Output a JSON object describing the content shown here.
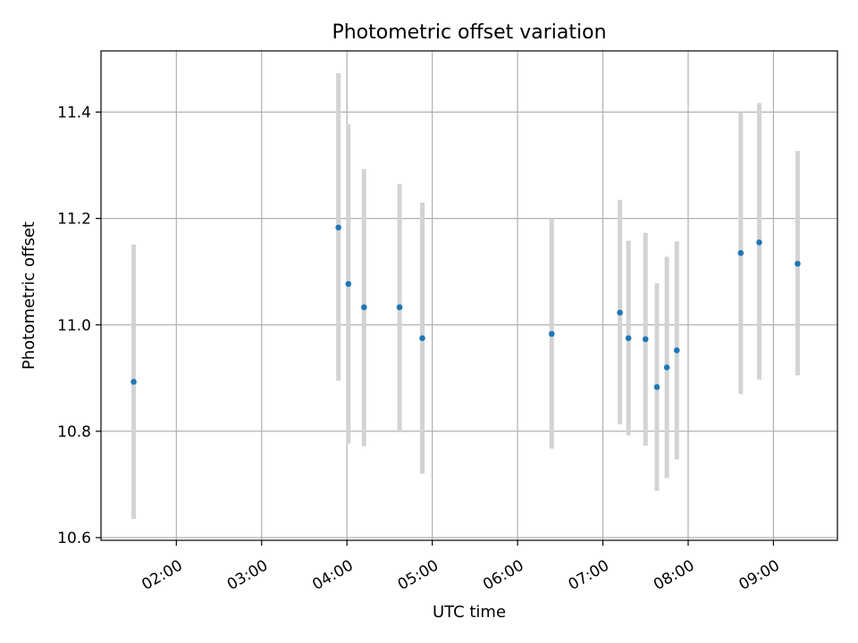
{
  "chart_data": {
    "type": "scatter",
    "title": "Photometric offset variation",
    "xlabel": "UTC time",
    "ylabel": "Photometric offset",
    "x_axis": {
      "type": "time",
      "range": [
        "01:07",
        "09:45"
      ],
      "ticks": [
        "02:00",
        "03:00",
        "04:00",
        "05:00",
        "06:00",
        "07:00",
        "08:00",
        "09:00"
      ]
    },
    "y_axis": {
      "range": [
        10.595,
        11.515
      ],
      "ticks": [
        10.6,
        10.8,
        11.0,
        11.2,
        11.4
      ],
      "tick_labels": [
        "10.6",
        "10.8",
        "11.0",
        "11.2",
        "11.4"
      ]
    },
    "grid": true,
    "marker_color": "#1f77b4",
    "errorbar_color": "#d3d3d3",
    "points": [
      {
        "t": "01:30",
        "y": 10.893,
        "lo": 10.635,
        "hi": 11.151
      },
      {
        "t": "03:54",
        "y": 11.183,
        "lo": 10.895,
        "hi": 11.473
      },
      {
        "t": "04:01",
        "y": 11.077,
        "lo": 10.777,
        "hi": 11.377
      },
      {
        "t": "04:12",
        "y": 11.033,
        "lo": 10.772,
        "hi": 11.293
      },
      {
        "t": "04:37",
        "y": 11.033,
        "lo": 10.8,
        "hi": 11.265
      },
      {
        "t": "04:53",
        "y": 10.975,
        "lo": 10.72,
        "hi": 11.23
      },
      {
        "t": "06:24",
        "y": 10.983,
        "lo": 10.767,
        "hi": 11.2
      },
      {
        "t": "07:12",
        "y": 11.023,
        "lo": 10.813,
        "hi": 11.235
      },
      {
        "t": "07:18",
        "y": 10.975,
        "lo": 10.792,
        "hi": 11.158
      },
      {
        "t": "07:30",
        "y": 10.973,
        "lo": 10.773,
        "hi": 11.173
      },
      {
        "t": "07:38",
        "y": 10.883,
        "lo": 10.688,
        "hi": 11.078
      },
      {
        "t": "07:45",
        "y": 10.92,
        "lo": 10.712,
        "hi": 11.128
      },
      {
        "t": "07:52",
        "y": 10.952,
        "lo": 10.747,
        "hi": 11.157
      },
      {
        "t": "08:37",
        "y": 11.135,
        "lo": 10.87,
        "hi": 11.4
      },
      {
        "t": "08:50",
        "y": 11.155,
        "lo": 10.897,
        "hi": 11.417
      },
      {
        "t": "09:17",
        "y": 11.115,
        "lo": 10.905,
        "hi": 11.327
      }
    ]
  }
}
